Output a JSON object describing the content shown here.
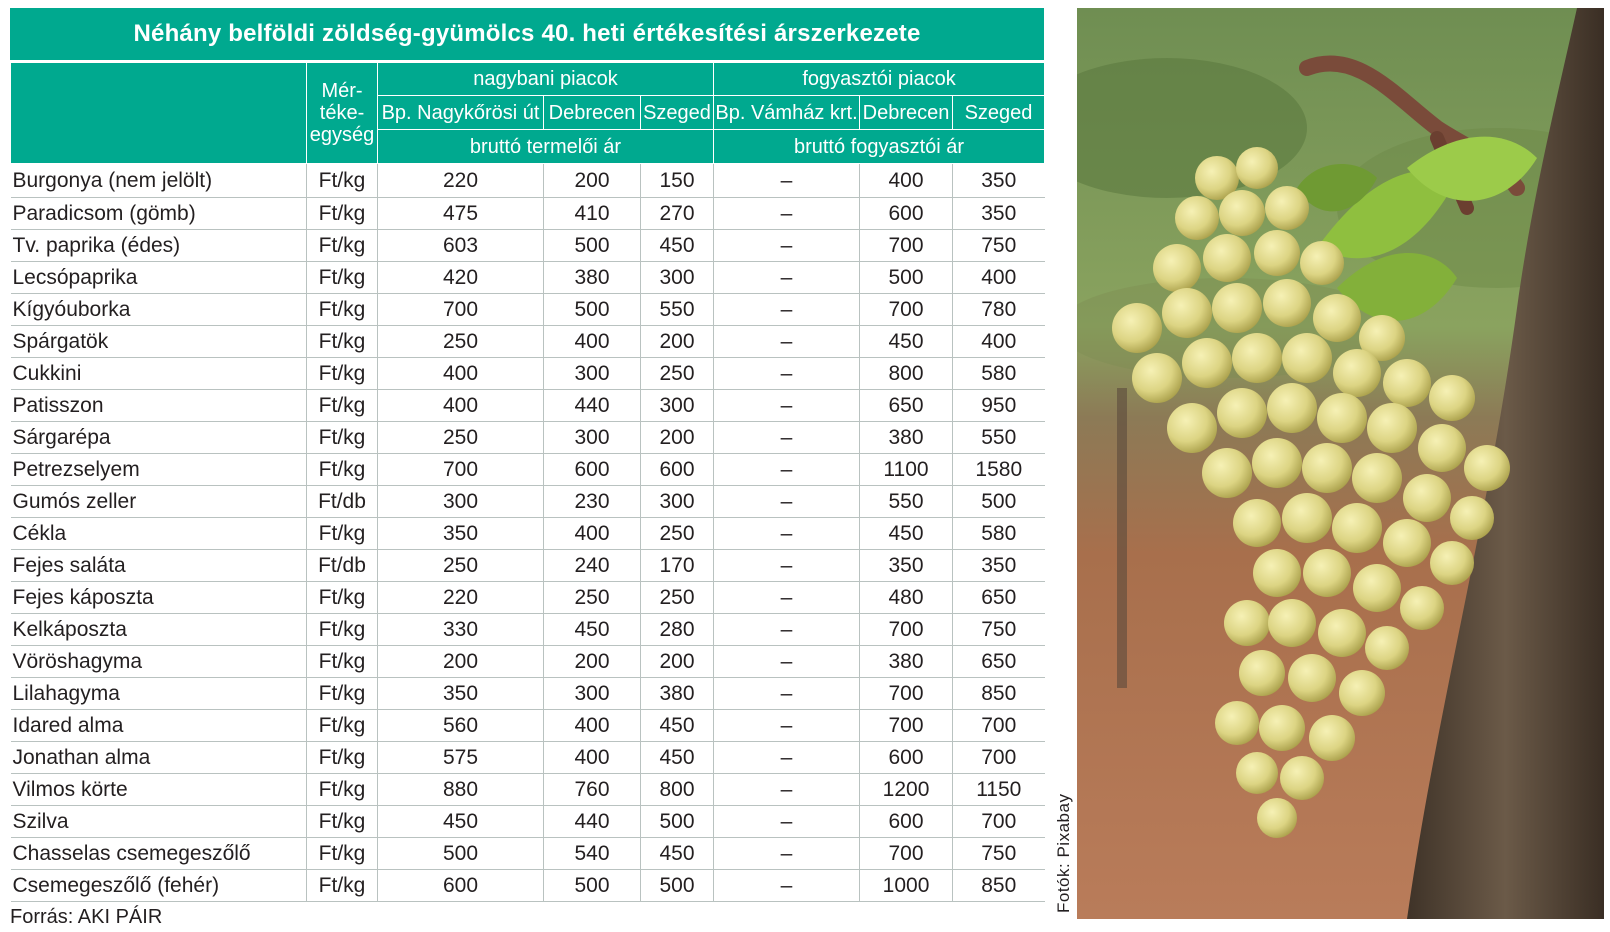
{
  "title": "Néhány belföldi zöldség-gyümölcs 40. heti értékesítési árszerkezete",
  "headers": {
    "unit": "Mér-\ntéke-\negység",
    "wholesale_group": "nagybani piacok",
    "consumer_group": "fogyasztói piacok",
    "wholesale_columns": [
      "Bp. Nagykőrösi út",
      "Debrecen",
      "Szeged"
    ],
    "consumer_columns": [
      "Bp. Vámház krt.",
      "Debrecen",
      "Szeged"
    ],
    "wholesale_price_type": "bruttó termelői ár",
    "consumer_price_type": "bruttó fogyasztói ár"
  },
  "rows": [
    {
      "name": "Burgonya (nem jelölt)",
      "unit": "Ft/kg",
      "values": [
        "220",
        "200",
        "150",
        "–",
        "400",
        "350"
      ]
    },
    {
      "name": "Paradicsom (gömb)",
      "unit": "Ft/kg",
      "values": [
        "475",
        "410",
        "270",
        "–",
        "600",
        "350"
      ]
    },
    {
      "name": "Tv. paprika (édes)",
      "unit": "Ft/kg",
      "values": [
        "603",
        "500",
        "450",
        "–",
        "700",
        "750"
      ]
    },
    {
      "name": "Lecsópaprika",
      "unit": "Ft/kg",
      "values": [
        "420",
        "380",
        "300",
        "–",
        "500",
        "400"
      ]
    },
    {
      "name": "Kígyóuborka",
      "unit": "Ft/kg",
      "values": [
        "700",
        "500",
        "550",
        "–",
        "700",
        "780"
      ]
    },
    {
      "name": "Spárgatök",
      "unit": "Ft/kg",
      "values": [
        "250",
        "400",
        "200",
        "–",
        "450",
        "400"
      ]
    },
    {
      "name": "Cukkini",
      "unit": "Ft/kg",
      "values": [
        "400",
        "300",
        "250",
        "–",
        "800",
        "580"
      ]
    },
    {
      "name": "Patisszon",
      "unit": "Ft/kg",
      "values": [
        "400",
        "440",
        "300",
        "–",
        "650",
        "950"
      ]
    },
    {
      "name": "Sárgarépa",
      "unit": "Ft/kg",
      "values": [
        "250",
        "300",
        "200",
        "–",
        "380",
        "550"
      ]
    },
    {
      "name": "Petrezselyem",
      "unit": "Ft/kg",
      "values": [
        "700",
        "600",
        "600",
        "–",
        "1100",
        "1580"
      ]
    },
    {
      "name": "Gumós zeller",
      "unit": "Ft/db",
      "values": [
        "300",
        "230",
        "300",
        "–",
        "550",
        "500"
      ]
    },
    {
      "name": "Cékla",
      "unit": "Ft/kg",
      "values": [
        "350",
        "400",
        "250",
        "–",
        "450",
        "580"
      ]
    },
    {
      "name": "Fejes saláta",
      "unit": "Ft/db",
      "values": [
        "250",
        "240",
        "170",
        "–",
        "350",
        "350"
      ]
    },
    {
      "name": "Fejes káposzta",
      "unit": "Ft/kg",
      "values": [
        "220",
        "250",
        "250",
        "–",
        "480",
        "650"
      ]
    },
    {
      "name": "Kelkáposzta",
      "unit": "Ft/kg",
      "values": [
        "330",
        "450",
        "280",
        "–",
        "700",
        "750"
      ]
    },
    {
      "name": "Vöröshagyma",
      "unit": "Ft/kg",
      "values": [
        "200",
        "200",
        "200",
        "–",
        "380",
        "650"
      ]
    },
    {
      "name": "Lilahagyma",
      "unit": "Ft/kg",
      "values": [
        "350",
        "300",
        "380",
        "–",
        "700",
        "850"
      ]
    },
    {
      "name": "Idared alma",
      "unit": "Ft/kg",
      "values": [
        "560",
        "400",
        "450",
        "–",
        "700",
        "700"
      ]
    },
    {
      "name": "Jonathan alma",
      "unit": "Ft/kg",
      "values": [
        "575",
        "400",
        "450",
        "–",
        "600",
        "700"
      ]
    },
    {
      "name": "Vilmos körte",
      "unit": "Ft/kg",
      "values": [
        "880",
        "760",
        "800",
        "–",
        "1200",
        "1150"
      ]
    },
    {
      "name": "Szilva",
      "unit": "Ft/kg",
      "values": [
        "450",
        "440",
        "500",
        "–",
        "600",
        "700"
      ]
    },
    {
      "name": "Chasselas csemegeszőlő",
      "unit": "Ft/kg",
      "values": [
        "500",
        "540",
        "450",
        "–",
        "700",
        "750"
      ]
    },
    {
      "name": "Csemegeszőlő (fehér)",
      "unit": "Ft/kg",
      "values": [
        "600",
        "500",
        "500",
        "–",
        "1000",
        "850"
      ]
    }
  ],
  "source": "Forrás: AKI PÁIR",
  "photo_credit": "Fotók: Pixabay",
  "colors": {
    "header_bg": "#00a98f",
    "header_text": "#ffffff",
    "grid": "#b9c2c0"
  }
}
